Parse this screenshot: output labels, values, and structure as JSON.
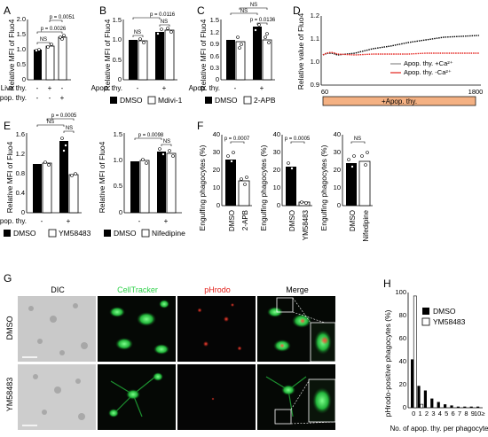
{
  "panels": {
    "A": {
      "letter": "A",
      "ylabel": "Relative MFI of Fluo4",
      "yticks": [
        "0",
        "0.5",
        "1.0",
        "1.5",
        "2.0"
      ],
      "row_labels": [
        "Live thy.",
        "Apop. thy."
      ],
      "cols": [
        [
          "-",
          "-"
        ],
        [
          "+",
          "-"
        ],
        [
          "-",
          "+"
        ]
      ],
      "p1": "NS",
      "p2": "p = 0.0026",
      "p3": "p = 0.0051"
    },
    "B": {
      "letter": "B",
      "ylabel": "Relative MFI of Fluo4",
      "yticks": [
        "0",
        "0.5",
        "1.0",
        "1.5"
      ],
      "row_label": "Apop. thy.",
      "xgroups": [
        "-",
        "+"
      ],
      "p1": "NS",
      "p2": "NS",
      "p3": "p = 0.0116",
      "legend": [
        "DMSO",
        "Mdivi-1"
      ]
    },
    "C": {
      "letter": "C",
      "ylabel": "Relative MFI of Fluo4",
      "yticks": [
        "0",
        "0.3",
        "0.6",
        "0.9",
        "1.2",
        "1.5"
      ],
      "row_label": "Apop. thy.",
      "xgroups": [
        "-",
        "+"
      ],
      "p1": "NS",
      "p2": "p = 0.0136",
      "p3": "NS",
      "legend": [
        "DMSO",
        "2-APB"
      ]
    },
    "D": {
      "letter": "D",
      "ylabel": "Relative value of Fluo4",
      "yticks": [
        "0.9",
        "1.0",
        "1.1",
        "1.2"
      ],
      "xticks": [
        "60",
        "1800"
      ],
      "bar_label": "+Apop. thy.",
      "legend": [
        "Apop. thy. +Ca²⁺",
        "Apop. thy. -Ca²⁺"
      ]
    },
    "E": {
      "letter": "E",
      "ylabel": "Relative MFI of Fluo4",
      "yticks": [
        "0",
        "0.4",
        "0.8",
        "1.2",
        "1.6"
      ],
      "row_label": "Apop. thy.",
      "xgroups": [
        "-",
        "+"
      ],
      "left": {
        "p1": "NS",
        "p2": "NS",
        "p3": "p = 0.0005"
      },
      "right": {
        "p1": "NS",
        "p2": "p = 0.0098"
      },
      "legend_left": [
        "DMSO",
        "YM58483"
      ],
      "legend_right": [
        "DMSO",
        "Nifedipine"
      ]
    },
    "F": {
      "letter": "F",
      "ylabel": "Engulfing phagocytes (%)",
      "sub1": {
        "yticks": [
          "0",
          "10",
          "20",
          "30",
          "40"
        ],
        "p": "p = 0.0007",
        "xlabels": [
          "DMSO",
          "2-APB"
        ]
      },
      "sub2": {
        "yticks": [
          "0",
          "10",
          "20",
          "30",
          "40"
        ],
        "p": "p = 0.0005",
        "xlabels": [
          "DMSO",
          "YM58483"
        ]
      },
      "sub3": {
        "yticks": [
          "0",
          "10",
          "20",
          "30",
          "40"
        ],
        "p": "NS",
        "xlabels": [
          "DMSO",
          "Nifedipine"
        ]
      }
    },
    "G": {
      "letter": "G",
      "cols": [
        "DIC",
        "CellTracker",
        "pHrodo",
        "Merge"
      ],
      "rows": [
        "DMSO",
        "YM58483"
      ]
    },
    "H": {
      "letter": "H",
      "ylabel": "pHrodo-positive phagocytes (%)",
      "yticks": [
        "0",
        "20",
        "40",
        "60",
        "80",
        "100"
      ],
      "xticks": [
        "0",
        "1",
        "2",
        "3",
        "4",
        "5",
        "6",
        "7",
        "8",
        "9",
        "10≥"
      ],
      "xlabel": "No. of apop. thy. per phagocyte",
      "legend": [
        "DMSO",
        "YM58483"
      ]
    }
  },
  "colors": {
    "black": "#000000",
    "white": "#ffffff",
    "red": "#e3201b",
    "orange": "#f4b183",
    "green": "#2fd24a",
    "gray": "#8a8a8a"
  },
  "chart_data": [
    {
      "panel": "A",
      "type": "bar",
      "categories": [
        "-/-",
        "+/-",
        "-/+"
      ],
      "values": [
        1.0,
        1.12,
        1.4
      ],
      "ylim": [
        0,
        2.0
      ],
      "title": "",
      "xlabel": "",
      "ylabel": "Relative MFI of Fluo4"
    },
    {
      "panel": "B",
      "type": "bar",
      "categories": [
        "-",
        "+"
      ],
      "series": [
        {
          "name": "DMSO",
          "values": [
            1.0,
            1.22
          ]
        },
        {
          "name": "Mdivi-1",
          "values": [
            0.98,
            1.25
          ]
        }
      ],
      "ylim": [
        0,
        1.5
      ],
      "ylabel": "Relative MFI of Fluo4"
    },
    {
      "panel": "C",
      "type": "bar",
      "categories": [
        "-",
        "+"
      ],
      "series": [
        {
          "name": "DMSO",
          "values": [
            1.0,
            1.35
          ]
        },
        {
          "name": "2-APB",
          "values": [
            0.95,
            1.0
          ]
        }
      ],
      "ylim": [
        0,
        1.5
      ],
      "ylabel": "Relative MFI of Fluo4"
    },
    {
      "panel": "D",
      "type": "line",
      "x": [
        60,
        1800
      ],
      "series": [
        {
          "name": "Apop. thy. +Ca²⁺",
          "values": [
            1.05,
            1.18
          ]
        },
        {
          "name": "Apop. thy. -Ca²⁺",
          "values": [
            1.05,
            1.06
          ]
        }
      ],
      "ylim": [
        0.9,
        1.2
      ],
      "ylabel": "Relative value of Fluo4"
    },
    {
      "panel": "E-left",
      "type": "bar",
      "categories": [
        "-",
        "+"
      ],
      "series": [
        {
          "name": "DMSO",
          "values": [
            1.0,
            1.48
          ]
        },
        {
          "name": "YM58483",
          "values": [
            1.02,
            0.78
          ]
        }
      ],
      "ylim": [
        0,
        1.6
      ],
      "ylabel": "Relative MFI of Fluo4"
    },
    {
      "panel": "E-right",
      "type": "bar",
      "categories": [
        "-",
        "+"
      ],
      "series": [
        {
          "name": "DMSO",
          "values": [
            1.0,
            1.18
          ]
        },
        {
          "name": "Nifedipine",
          "values": [
            1.02,
            1.15
          ]
        }
      ],
      "ylim": [
        0,
        1.5
      ],
      "ylabel": "Relative MFI of Fluo4"
    },
    {
      "panel": "F-1",
      "type": "bar",
      "categories": [
        "DMSO",
        "2-APB"
      ],
      "values": [
        26,
        14
      ],
      "ylim": [
        0,
        40
      ],
      "ylabel": "Engulfing phagocytes (%)"
    },
    {
      "panel": "F-2",
      "type": "bar",
      "categories": [
        "DMSO",
        "YM58483"
      ],
      "values": [
        22,
        2
      ],
      "ylim": [
        0,
        40
      ],
      "ylabel": "Engulfing phagocytes (%)"
    },
    {
      "panel": "F-3",
      "type": "bar",
      "categories": [
        "DMSO",
        "Nifedipine"
      ],
      "values": [
        24,
        25
      ],
      "ylim": [
        0,
        40
      ],
      "ylabel": "Engulfing phagocytes (%)"
    },
    {
      "panel": "H",
      "type": "bar",
      "categories": [
        "0",
        "1",
        "2",
        "3",
        "4",
        "5",
        "6",
        "7",
        "8",
        "9",
        "10≥"
      ],
      "series": [
        {
          "name": "DMSO",
          "values": [
            42,
            19,
            15,
            8,
            5,
            3,
            2,
            1,
            1,
            1,
            1
          ]
        },
        {
          "name": "YM58483",
          "values": [
            97,
            3,
            0,
            0,
            0,
            0,
            0,
            0,
            0,
            0,
            0
          ]
        }
      ],
      "ylim": [
        0,
        100
      ],
      "ylabel": "pHrodo-positive phagocytes (%)",
      "xlabel": "No. of apop. thy. per phagocyte"
    }
  ]
}
